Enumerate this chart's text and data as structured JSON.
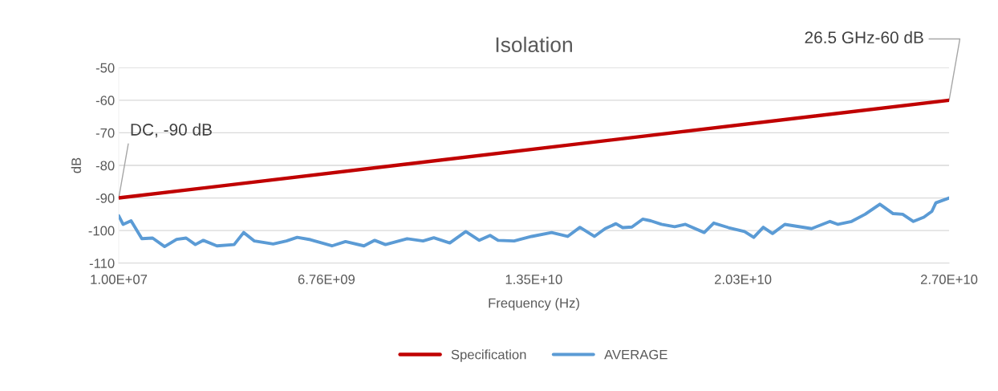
{
  "chart_data": {
    "type": "line",
    "title": "Isolation",
    "xlabel": "Frequency (Hz)",
    "ylabel": "dB",
    "xlim": [
      10000000,
      27000000000
    ],
    "xticks": [
      {
        "value": 10000000,
        "label": "1.00E+07"
      },
      {
        "value": 6760000000,
        "label": "6.76E+09"
      },
      {
        "value": 13500000000,
        "label": "1.35E+10"
      },
      {
        "value": 20300000000,
        "label": "2.03E+10"
      },
      {
        "value": 27000000000,
        "label": "2.70E+10"
      }
    ],
    "ylim": [
      -110,
      -50
    ],
    "yticks": [
      -110,
      -100,
      -90,
      -80,
      -70,
      -60,
      -50
    ],
    "grid": "y",
    "legend": "bottom",
    "marker": "none",
    "line_style": "solid",
    "series": [
      {
        "name": "Specification",
        "color": "#c00000",
        "x": [
          10000000,
          27000000000
        ],
        "values": [
          -90,
          -60
        ]
      },
      {
        "name": "AVERAGE",
        "color": "#5b9bd5",
        "x": [
          10000000,
          150000000,
          410000000,
          760000000,
          1110000000,
          1500000000,
          1890000000,
          2200000000,
          2500000000,
          2760000000,
          3200000000,
          3760000000,
          4070000000,
          4420000000,
          5030000000,
          5460000000,
          5810000000,
          6240000000,
          6940000000,
          7380000000,
          7980000000,
          8330000000,
          8680000000,
          9380000000,
          9900000000,
          10250000000,
          10770000000,
          11290000000,
          11730000000,
          12080000000,
          12340000000,
          12860000000,
          13430000000,
          14080000000,
          14600000000,
          15000000000,
          15470000000,
          15820000000,
          16170000000,
          16390000000,
          16690000000,
          17040000000,
          17300000000,
          17650000000,
          18080000000,
          18430000000,
          19040000000,
          19350000000,
          19830000000,
          20350000000,
          20650000000,
          20960000000,
          21260000000,
          21660000000,
          22530000000,
          23130000000,
          23390000000,
          23830000000,
          24270000000,
          24750000000,
          25180000000,
          25490000000,
          25840000000,
          26180000000,
          26440000000,
          26570000000,
          27000000000
        ],
        "values": [
          -95.5,
          -98.1,
          -97.0,
          -102.5,
          -102.3,
          -104.9,
          -102.7,
          -102.3,
          -104.3,
          -103.0,
          -104.7,
          -104.3,
          -100.6,
          -103.2,
          -104.1,
          -103.2,
          -102.1,
          -102.8,
          -104.7,
          -103.4,
          -104.7,
          -103.0,
          -104.3,
          -102.5,
          -103.2,
          -102.2,
          -103.8,
          -100.3,
          -103.0,
          -101.5,
          -103.0,
          -103.2,
          -101.8,
          -100.6,
          -101.8,
          -99.0,
          -101.8,
          -99.4,
          -97.9,
          -99.1,
          -98.9,
          -96.5,
          -97.0,
          -98.1,
          -98.8,
          -98.1,
          -100.6,
          -97.7,
          -99.1,
          -100.3,
          -102.1,
          -99.0,
          -100.9,
          -98.1,
          -99.4,
          -97.2,
          -98.1,
          -97.2,
          -95.0,
          -91.9,
          -94.8,
          -95.0,
          -97.2,
          -95.9,
          -94.1,
          -91.5,
          -90
        ]
      }
    ],
    "annotations": [
      {
        "text": "DC, -90 dB",
        "x": 10000000,
        "y": -90
      },
      {
        "text": "26.5 GHz-60 dB",
        "x": 27000000000,
        "y": -60
      }
    ]
  }
}
